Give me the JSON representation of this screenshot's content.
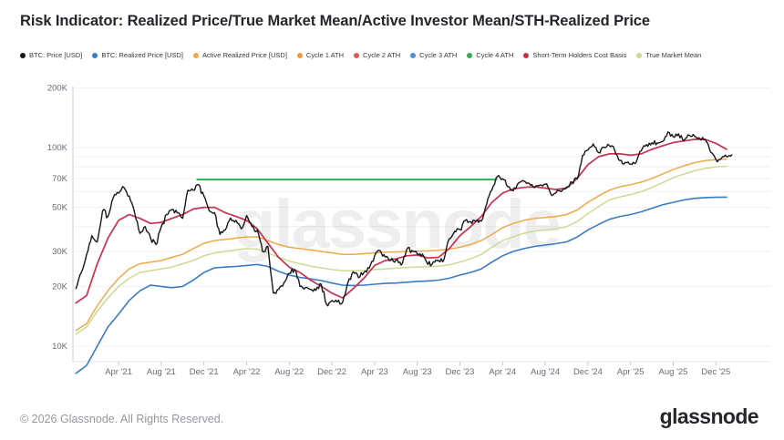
{
  "header": {
    "title": "Risk Indicator: Realized Price/True Market Mean/Active Investor Mean/STH-Realized Price"
  },
  "watermark": {
    "text": "glassnode"
  },
  "footer": {
    "copyright": "© 2026 Glassnode. All Rights Reserved.",
    "logo_text": "glassnode"
  },
  "legend": {
    "items": [
      {
        "label": "BTC: Price [USD]",
        "color": "#17171c"
      },
      {
        "label": "BTC: Realized Price [USD]",
        "color": "#3a7cc3"
      },
      {
        "label": "Active Realized Price [USD]",
        "color": "#efa94a"
      },
      {
        "label": "Cycle 1 ATH",
        "color": "#ef9c38"
      },
      {
        "label": "Cycle 2 ATH",
        "color": "#e25555"
      },
      {
        "label": "Cycle 3 ATH",
        "color": "#4a90d9"
      },
      {
        "label": "Cycle 4 ATH",
        "color": "#2fae53"
      },
      {
        "label": "Short-Term Holders Cost Basis",
        "color": "#c9314b"
      },
      {
        "label": "True Market Mean",
        "color": "#c9dc92"
      }
    ]
  },
  "chart_data": {
    "type": "line",
    "y_scale": "log",
    "x_start_month": "2020-12",
    "x_step_unit": "months since 2021-01",
    "ylim_thousforms": [
      8,
      210
    ],
    "grid": "horizontal-only",
    "legend_position": "top",
    "y_ticks": [
      {
        "v": 200,
        "label": "200K"
      },
      {
        "v": 100,
        "label": "100K"
      },
      {
        "v": 70,
        "label": "70K"
      },
      {
        "v": 50,
        "label": "50K"
      },
      {
        "v": 30,
        "label": "30K"
      },
      {
        "v": 20,
        "label": "20K"
      },
      {
        "v": 10,
        "label": "10K"
      }
    ],
    "y_grid_minor": [
      90,
      80,
      60,
      40
    ],
    "x_ticks": [
      {
        "m": 3,
        "label": "Apr '21"
      },
      {
        "m": 7,
        "label": "Aug '21"
      },
      {
        "m": 11,
        "label": "Dec '21"
      },
      {
        "m": 15,
        "label": "Apr '22"
      },
      {
        "m": 19,
        "label": "Aug '22"
      },
      {
        "m": 23,
        "label": "Dec '22"
      },
      {
        "m": 27,
        "label": "Apr '23"
      },
      {
        "m": 31,
        "label": "Aug '23"
      },
      {
        "m": 35,
        "label": "Dec '23"
      },
      {
        "m": 39,
        "label": "Apr '24"
      },
      {
        "m": 43,
        "label": "Aug '24"
      },
      {
        "m": 47,
        "label": "Dec '24"
      },
      {
        "m": 51,
        "label": "Apr '25"
      },
      {
        "m": 55,
        "label": "Aug '25"
      },
      {
        "m": 59,
        "label": "Dec '25"
      }
    ],
    "series": [
      {
        "name": "BTC: Realized Price [USD]",
        "color": "#3a7cc3",
        "width": 1.6,
        "start_m": -1,
        "step": 1,
        "unit": "kUSD",
        "values": [
          7.3,
          8,
          10,
          12.5,
          14.5,
          17,
          19,
          20.3,
          20,
          19.7,
          20,
          21.5,
          23.5,
          24.8,
          25,
          25.2,
          25.5,
          25.8,
          25.2,
          23.8,
          22.8,
          22.2,
          21.8,
          21.4,
          20.8,
          20.3,
          20.2,
          20.3,
          20.5,
          20.7,
          20.8,
          21,
          21.2,
          21.3,
          21.5,
          22,
          22.8,
          23.5,
          24.5,
          26.5,
          28.5,
          30,
          31,
          31.8,
          32.3,
          32.8,
          33.5,
          35.5,
          38.5,
          41,
          43.5,
          45,
          46,
          47.5,
          49.5,
          51.5,
          53,
          54.5,
          55.5,
          56,
          56.2,
          56.3
        ]
      },
      {
        "name": "True Market Mean",
        "color": "#c9dc92",
        "width": 1.5,
        "start_m": -1,
        "step": 1,
        "unit": "kUSD",
        "values": [
          11.5,
          12.5,
          15,
          17.5,
          20,
          22,
          23.5,
          24,
          24.5,
          25,
          26,
          27,
          28.5,
          29.5,
          30,
          30.5,
          31,
          30.8,
          29.5,
          28,
          26.8,
          26,
          25.3,
          24.8,
          24.3,
          24,
          24,
          24.1,
          24.3,
          24.5,
          24.7,
          24.9,
          25,
          25.1,
          25.3,
          25.7,
          26.5,
          27.5,
          29,
          31.5,
          34,
          35.5,
          37,
          38,
          38.5,
          39,
          40,
          42.5,
          46.5,
          50.5,
          54.5,
          56.5,
          58,
          60,
          63,
          66.5,
          70.5,
          73.5,
          76.5,
          78.5,
          80,
          80.5
        ]
      },
      {
        "name": "Active Realized Price [USD]",
        "color": "#efa94a",
        "width": 1.5,
        "start_m": -1,
        "step": 1,
        "unit": "kUSD",
        "values": [
          12,
          13,
          16,
          19,
          22,
          24.5,
          26,
          26.5,
          27,
          28,
          29,
          31,
          33,
          34,
          34.5,
          35,
          35.5,
          35.5,
          34,
          32.5,
          31.5,
          31,
          30.5,
          30,
          29.5,
          29,
          29,
          29.2,
          29.5,
          29.7,
          29.8,
          30,
          30.1,
          30.2,
          30.4,
          30.8,
          31.5,
          32.5,
          34,
          36.5,
          39.5,
          41.5,
          43,
          44,
          44.5,
          45,
          46,
          48.5,
          53,
          57,
          61,
          63.5,
          65,
          67,
          70,
          73.5,
          77.5,
          81,
          84,
          86,
          87,
          87.5
        ]
      },
      {
        "name": "Short-Term Holders Cost Basis",
        "color": "#c9314b",
        "width": 1.7,
        "start_m": -1,
        "step": 1,
        "unit": "kUSD",
        "values": [
          16.5,
          18,
          26,
          35,
          43,
          46,
          44,
          41.5,
          42,
          44,
          46,
          49,
          50,
          50,
          47,
          45,
          43,
          39,
          33,
          28,
          25,
          23.5,
          21.5,
          20,
          18.5,
          17.5,
          19.5,
          22,
          25.5,
          27,
          27.5,
          28.5,
          28.8,
          27.8,
          28,
          31,
          36,
          40,
          45,
          53,
          59,
          62,
          63,
          63.5,
          62.5,
          61.5,
          62.5,
          70,
          82,
          90,
          93,
          93,
          91.5,
          93,
          98,
          102,
          106,
          108,
          110,
          110,
          105,
          98
        ]
      },
      {
        "name": "Cycle 4 ATH",
        "color": "#2fae53",
        "width": 2,
        "type": "hline",
        "unit": "kUSD",
        "value": 69,
        "from_m": 10.3,
        "to_m": 38.5
      },
      {
        "name": "BTC: Price [USD]",
        "color": "#17171c",
        "width": 1.4,
        "start_m": -1,
        "step": 0.5,
        "unit": "kUSD",
        "jitter": true,
        "values": [
          19.5,
          23.5,
          29,
          36,
          33.5,
          48,
          45,
          56,
          59,
          63,
          57,
          47,
          37,
          40,
          35,
          32.5,
          40,
          46,
          48.8,
          47,
          44,
          61,
          61,
          65,
          57,
          48,
          47,
          36.5,
          38.5,
          44.2,
          43,
          39,
          45.5,
          40,
          38.5,
          30,
          31.8,
          18.5,
          19.3,
          20.8,
          23.3,
          24.3,
          20,
          19.7,
          19.3,
          19.1,
          20.5,
          16.2,
          17,
          16.7,
          16.6,
          20.9,
          23.7,
          22.1,
          23.5,
          24.7,
          28.5,
          30.3,
          28.1,
          27,
          27.1,
          25.6,
          30.6,
          30.3,
          29.2,
          29.1,
          25.8,
          26.6,
          27,
          27.2,
          34.7,
          37.9,
          38.7,
          42.9,
          42.3,
          42.5,
          42.6,
          51.8,
          61.2,
          71.4,
          69.7,
          63.4,
          60.6,
          66.3,
          67.8,
          66,
          62.8,
          64.8,
          65.4,
          58.7,
          59.1,
          60,
          63.3,
          67.1,
          69.5,
          91.1,
          97.3,
          104.3,
          94.4,
          100.5,
          102.4,
          97.5,
          86,
          84.3,
          82.5,
          83.7,
          96.5,
          103.7,
          105.7,
          105.5,
          107.2,
          119.9,
          113.4,
          117.4,
          108.2,
          115.4,
          114,
          111,
          110,
          95,
          87,
          88,
          90,
          92
        ]
      }
    ]
  }
}
